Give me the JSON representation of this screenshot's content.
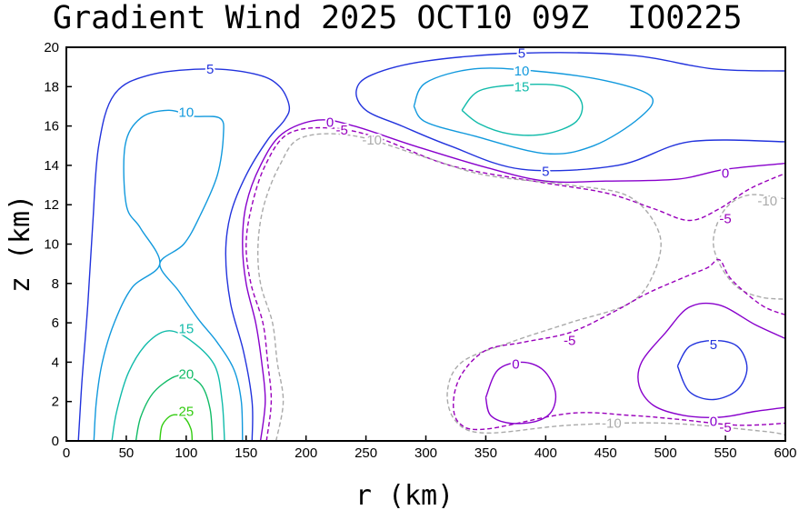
{
  "chart_data": {
    "type": "contour",
    "title": "Gradient Wind 2025 OCT10 09Z  IO0225",
    "xlabel": "r (km)",
    "ylabel": "z (km)",
    "xlim": [
      0,
      600
    ],
    "ylim": [
      0,
      20
    ],
    "xticks": [
      "0",
      "50",
      "100",
      "150",
      "200",
      "250",
      "300",
      "350",
      "400",
      "450",
      "500",
      "550",
      "600"
    ],
    "yticks": [
      "0",
      "2",
      "4",
      "6",
      "8",
      "10",
      "12",
      "14",
      "16",
      "18",
      "20"
    ],
    "grid": false,
    "legend": "none",
    "levels": [
      {
        "value": -10,
        "color": "#aaaaaa",
        "dashed": true
      },
      {
        "value": -5,
        "color": "#9900bb",
        "dashed": true
      },
      {
        "value": 0,
        "color": "#8800cc",
        "dashed": false
      },
      {
        "value": 5,
        "color": "#2233dd",
        "dashed": false
      },
      {
        "value": 10,
        "color": "#1199dd",
        "dashed": false
      },
      {
        "value": 15,
        "color": "#11bbaa",
        "dashed": false
      },
      {
        "value": 20,
        "color": "#11bb66",
        "dashed": false
      },
      {
        "value": 25,
        "color": "#33cc11",
        "dashed": false
      }
    ],
    "contours": [
      {
        "level": 25,
        "points": [
          [
            78,
            0
          ],
          [
            80,
            0.8
          ],
          [
            88,
            1.3
          ],
          [
            98,
            1.2
          ],
          [
            104,
            0.6
          ],
          [
            105,
            0
          ]
        ]
      },
      {
        "level": 20,
        "points": [
          [
            58,
            0
          ],
          [
            62,
            1.2
          ],
          [
            72,
            2.4
          ],
          [
            88,
            3.2
          ],
          [
            100,
            3.3
          ],
          [
            113,
            2.8
          ],
          [
            120,
            1.6
          ],
          [
            122,
            0
          ]
        ]
      },
      {
        "level": 15,
        "points": [
          [
            38,
            0
          ],
          [
            42,
            1.5
          ],
          [
            52,
            3.5
          ],
          [
            68,
            5.0
          ],
          [
            86,
            5.6
          ],
          [
            106,
            5.0
          ],
          [
            124,
            3.8
          ],
          [
            130,
            2.0
          ],
          [
            132,
            0
          ]
        ]
      },
      {
        "level": 10,
        "points": [
          [
            23,
            0
          ],
          [
            25,
            2
          ],
          [
            30,
            4
          ],
          [
            40,
            6
          ],
          [
            55,
            7.8
          ],
          [
            78,
            9.0
          ],
          [
            62,
            10.8
          ],
          [
            50,
            12
          ],
          [
            49,
            15
          ],
          [
            62,
            16.4
          ],
          [
            85,
            16.8
          ],
          [
            105,
            16.5
          ],
          [
            128,
            16.4
          ],
          [
            131,
            15.5
          ],
          [
            126,
            13.5
          ],
          [
            112,
            11.5
          ],
          [
            98,
            10
          ],
          [
            78,
            9.0
          ],
          [
            94,
            7.6
          ],
          [
            110,
            6.2
          ],
          [
            126,
            5.0
          ],
          [
            140,
            3.6
          ],
          [
            146,
            2
          ],
          [
            147,
            0
          ]
        ]
      },
      {
        "level": 5,
        "points": [
          [
            10,
            0
          ],
          [
            13,
            3
          ],
          [
            18,
            7
          ],
          [
            22,
            11
          ],
          [
            27,
            15
          ],
          [
            40,
            17.6
          ],
          [
            70,
            18.6
          ],
          [
            120,
            18.9
          ],
          [
            160,
            18.6
          ],
          [
            178,
            18.0
          ],
          [
            186,
            17.0
          ],
          [
            182,
            16.3
          ],
          [
            168,
            15.3
          ],
          [
            150,
            13.5
          ],
          [
            137,
            11.5
          ],
          [
            133,
            9.5
          ],
          [
            137,
            7
          ],
          [
            148,
            4.5
          ],
          [
            155,
            2
          ],
          [
            155,
            0
          ]
        ]
      },
      {
        "level": 5,
        "points": [
          [
            600,
            18.8
          ],
          [
            540,
            18.9
          ],
          [
            470,
            19.6
          ],
          [
            380,
            19.7
          ],
          [
            300,
            19.3
          ],
          [
            255,
            18.6
          ],
          [
            242,
            17.8
          ],
          [
            250,
            16.8
          ],
          [
            280,
            16
          ],
          [
            320,
            15
          ],
          [
            380,
            13.8
          ],
          [
            460,
            14
          ],
          [
            520,
            15.2
          ],
          [
            600,
            15.2
          ]
        ]
      },
      {
        "level": 10,
        "points": [
          [
            290,
            17
          ],
          [
            300,
            18.2
          ],
          [
            340,
            18.9
          ],
          [
            390,
            18.8
          ],
          [
            450,
            18.3
          ],
          [
            488,
            17.5
          ],
          [
            478,
            16.4
          ],
          [
            440,
            15.0
          ],
          [
            400,
            14.6
          ],
          [
            340,
            15.5
          ],
          [
            300,
            16.2
          ],
          [
            290,
            17
          ]
        ]
      },
      {
        "level": 15,
        "points": [
          [
            330,
            16.8
          ],
          [
            345,
            17.8
          ],
          [
            380,
            18.1
          ],
          [
            415,
            18.0
          ],
          [
            430,
            17.2
          ],
          [
            425,
            16.2
          ],
          [
            400,
            15.6
          ],
          [
            370,
            15.6
          ],
          [
            345,
            16.1
          ],
          [
            330,
            16.8
          ]
        ]
      },
      {
        "level": 0,
        "points": [
          [
            162,
            0
          ],
          [
            166,
            2
          ],
          [
            163,
            4
          ],
          [
            158,
            6
          ],
          [
            150,
            8
          ],
          [
            147,
            10
          ],
          [
            150,
            12
          ],
          [
            162,
            14
          ],
          [
            180,
            15.6
          ],
          [
            210,
            16.3
          ],
          [
            240,
            16
          ],
          [
            290,
            15
          ],
          [
            350,
            13.9
          ],
          [
            400,
            13.2
          ],
          [
            450,
            13.2
          ],
          [
            510,
            13.3
          ],
          [
            550,
            13.8
          ],
          [
            600,
            14.1
          ]
        ]
      },
      {
        "level": -5,
        "points": [
          [
            167,
            0
          ],
          [
            171,
            2
          ],
          [
            168,
            4
          ],
          [
            164,
            6
          ],
          [
            154,
            8
          ],
          [
            150,
            10
          ],
          [
            155,
            12
          ],
          [
            166,
            14
          ],
          [
            185,
            15.6
          ],
          [
            220,
            15.9
          ],
          [
            260,
            15.4
          ],
          [
            320,
            14
          ],
          [
            390,
            13.2
          ],
          [
            450,
            12.6
          ],
          [
            490,
            11.8
          ],
          [
            520,
            11.2
          ],
          [
            545,
            11.8
          ],
          [
            570,
            12.8
          ],
          [
            600,
            13.6
          ]
        ]
      },
      {
        "level": -10,
        "points": [
          [
            175,
            0
          ],
          [
            181,
            2
          ],
          [
            176,
            4
          ],
          [
            172,
            6
          ],
          [
            162,
            8
          ],
          [
            160,
            10
          ],
          [
            165,
            12
          ],
          [
            178,
            14
          ],
          [
            196,
            15.4
          ],
          [
            240,
            15.5
          ],
          [
            300,
            14.4
          ],
          [
            350,
            13.5
          ],
          [
            420,
            13.0
          ],
          [
            470,
            12.4
          ],
          [
            495,
            10.5
          ],
          [
            490,
            8.5
          ],
          [
            470,
            7.0
          ],
          [
            420,
            6.0
          ],
          [
            370,
            5.0
          ],
          [
            330,
            4.0
          ],
          [
            318,
            2.5
          ],
          [
            325,
            1.0
          ],
          [
            350,
            0.4
          ],
          [
            420,
            0.8
          ],
          [
            500,
            0.9
          ],
          [
            580,
            0.5
          ],
          [
            600,
            0.3
          ]
        ]
      },
      {
        "level": -10,
        "points": [
          [
            600,
            12.3
          ],
          [
            570,
            12.5
          ],
          [
            550,
            11.8
          ],
          [
            540,
            10.3
          ],
          [
            545,
            9.0
          ],
          [
            560,
            7.8
          ],
          [
            580,
            7.3
          ],
          [
            600,
            7.2
          ]
        ]
      },
      {
        "level": -5,
        "points": [
          [
            600,
            6.4
          ],
          [
            580,
            6.9
          ],
          [
            555,
            8.2
          ],
          [
            545,
            9.2
          ],
          [
            535,
            8.8
          ],
          [
            515,
            8.3
          ],
          [
            485,
            7.5
          ],
          [
            455,
            6.5
          ],
          [
            420,
            5.5
          ],
          [
            380,
            5.0
          ],
          [
            350,
            4.6
          ],
          [
            330,
            3.4
          ],
          [
            323,
            2.0
          ],
          [
            328,
            0.9
          ],
          [
            350,
            0.6
          ],
          [
            420,
            1.4
          ],
          [
            470,
            1.3
          ],
          [
            510,
            1.1
          ],
          [
            560,
            0.8
          ],
          [
            600,
            0.9
          ]
        ]
      },
      {
        "level": 0,
        "points": [
          [
            350,
            2.2
          ],
          [
            360,
            3.6
          ],
          [
            380,
            4.0
          ],
          [
            398,
            3.6
          ],
          [
            408,
            2.5
          ],
          [
            405,
            1.5
          ],
          [
            392,
            1.0
          ],
          [
            370,
            0.9
          ],
          [
            354,
            1.3
          ],
          [
            350,
            2.2
          ]
        ]
      },
      {
        "level": 0,
        "points": [
          [
            600,
            5.2
          ],
          [
            575,
            5.9
          ],
          [
            545,
            6.9
          ],
          [
            520,
            6.8
          ],
          [
            500,
            5.5
          ],
          [
            480,
            4.0
          ],
          [
            478,
            2.8
          ],
          [
            490,
            1.8
          ],
          [
            515,
            1.3
          ],
          [
            545,
            1.2
          ],
          [
            575,
            1.5
          ],
          [
            600,
            1.7
          ]
        ]
      },
      {
        "level": 5,
        "points": [
          [
            510,
            3.8
          ],
          [
            520,
            4.8
          ],
          [
            540,
            5.1
          ],
          [
            560,
            4.8
          ],
          [
            568,
            3.7
          ],
          [
            560,
            2.6
          ],
          [
            540,
            2.1
          ],
          [
            520,
            2.5
          ],
          [
            510,
            3.8
          ]
        ]
      }
    ],
    "labels": [
      {
        "text": "25",
        "r": 100,
        "z": 1.5,
        "level": 25
      },
      {
        "text": "20",
        "r": 100,
        "z": 3.4,
        "level": 20
      },
      {
        "text": "15",
        "r": 100,
        "z": 5.7,
        "level": 15
      },
      {
        "text": "10",
        "r": 100,
        "z": 16.7,
        "level": 10
      },
      {
        "text": "5",
        "r": 120,
        "z": 18.9,
        "level": 5
      },
      {
        "text": "5",
        "r": 380,
        "z": 19.7,
        "level": 5
      },
      {
        "text": "10",
        "r": 380,
        "z": 18.8,
        "level": 10
      },
      {
        "text": "15",
        "r": 380,
        "z": 18.0,
        "level": 15
      },
      {
        "text": "5",
        "r": 400,
        "z": 13.7,
        "level": 5
      },
      {
        "text": "0",
        "r": 220,
        "z": 16.2,
        "level": 0
      },
      {
        "text": "-5",
        "r": 230,
        "z": 15.8,
        "level": -5
      },
      {
        "text": "-10",
        "r": 255,
        "z": 15.3,
        "level": -10
      },
      {
        "text": "0",
        "r": 550,
        "z": 13.6,
        "level": 0
      },
      {
        "text": "-5",
        "r": 550,
        "z": 11.3,
        "level": -5
      },
      {
        "text": "-10",
        "r": 585,
        "z": 12.2,
        "level": -10
      },
      {
        "text": "-5",
        "r": 420,
        "z": 5.1,
        "level": -5
      },
      {
        "text": "0",
        "r": 375,
        "z": 3.9,
        "level": 0
      },
      {
        "text": "5",
        "r": 540,
        "z": 4.9,
        "level": 5
      },
      {
        "text": "-10",
        "r": 455,
        "z": 0.9,
        "level": -10
      },
      {
        "text": "0",
        "r": 540,
        "z": 1.0,
        "level": 0
      },
      {
        "text": "-5",
        "r": 550,
        "z": 0.7,
        "level": -5
      }
    ]
  }
}
